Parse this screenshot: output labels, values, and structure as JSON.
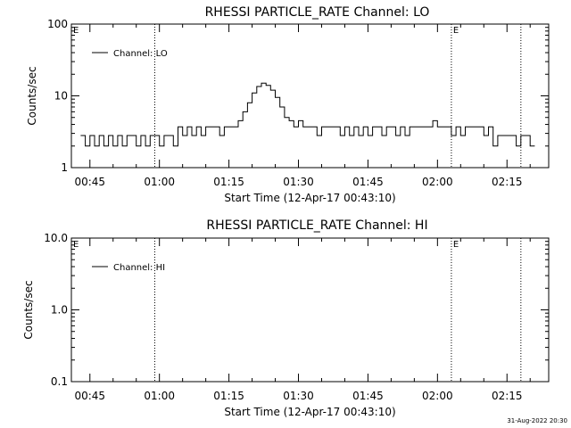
{
  "chart_data": [
    {
      "type": "line",
      "title": "RHESSI PARTICLE_RATE Channel: LO",
      "xlabel": "Start Time (12-Apr-17 00:43:10)",
      "ylabel": "Counts/sec",
      "yscale": "log",
      "ylim": [
        1,
        100
      ],
      "yticks": [
        1,
        10,
        100
      ],
      "ytick_labels": [
        "1",
        "10",
        "100"
      ],
      "xlim": [
        "00:41",
        "02:24"
      ],
      "xticks": [
        "00:45",
        "01:00",
        "01:15",
        "01:30",
        "01:45",
        "02:00",
        "02:15"
      ],
      "grid": false,
      "legend": {
        "position": "top-left",
        "entries": [
          "Channel: LO"
        ]
      },
      "markers": [
        {
          "label": "E",
          "time": "00:41"
        },
        {
          "label": "",
          "time": "00:59"
        },
        {
          "label": "E",
          "time": "02:03"
        },
        {
          "label": "",
          "time": "02:18"
        }
      ],
      "series": [
        {
          "name": "Channel: LO",
          "points": [
            [
              "00:43",
              2.8
            ],
            [
              "00:44",
              2.0
            ],
            [
              "00:45",
              2.8
            ],
            [
              "00:46",
              2.0
            ],
            [
              "00:47",
              2.8
            ],
            [
              "00:48",
              2.0
            ],
            [
              "00:49",
              2.8
            ],
            [
              "00:50",
              2.0
            ],
            [
              "00:51",
              2.8
            ],
            [
              "00:52",
              2.0
            ],
            [
              "00:53",
              2.8
            ],
            [
              "00:54",
              2.8
            ],
            [
              "00:55",
              2.0
            ],
            [
              "00:56",
              2.8
            ],
            [
              "00:57",
              2.0
            ],
            [
              "00:58",
              2.8
            ],
            [
              "00:59",
              2.8
            ],
            [
              "01:00",
              2.0
            ],
            [
              "01:01",
              2.8
            ],
            [
              "01:02",
              2.8
            ],
            [
              "01:03",
              2.0
            ],
            [
              "01:04",
              3.7
            ],
            [
              "01:05",
              2.8
            ],
            [
              "01:06",
              3.7
            ],
            [
              "01:07",
              2.8
            ],
            [
              "01:08",
              3.7
            ],
            [
              "01:09",
              2.8
            ],
            [
              "01:10",
              3.7
            ],
            [
              "01:11",
              3.7
            ],
            [
              "01:12",
              3.7
            ],
            [
              "01:13",
              2.8
            ],
            [
              "01:14",
              3.7
            ],
            [
              "01:15",
              3.7
            ],
            [
              "01:16",
              3.7
            ],
            [
              "01:17",
              4.5
            ],
            [
              "01:18",
              6.0
            ],
            [
              "01:19",
              8.0
            ],
            [
              "01:20",
              11.0
            ],
            [
              "01:21",
              13.5
            ],
            [
              "01:22",
              15.0
            ],
            [
              "01:23",
              14.0
            ],
            [
              "01:24",
              12.0
            ],
            [
              "01:25",
              9.5
            ],
            [
              "01:26",
              7.0
            ],
            [
              "01:27",
              5.0
            ],
            [
              "01:28",
              4.5
            ],
            [
              "01:29",
              3.7
            ],
            [
              "01:30",
              4.5
            ],
            [
              "01:31",
              3.7
            ],
            [
              "01:32",
              3.7
            ],
            [
              "01:33",
              3.7
            ],
            [
              "01:34",
              2.8
            ],
            [
              "01:35",
              3.7
            ],
            [
              "01:36",
              3.7
            ],
            [
              "01:37",
              3.7
            ],
            [
              "01:38",
              3.7
            ],
            [
              "01:39",
              2.8
            ],
            [
              "01:40",
              3.7
            ],
            [
              "01:41",
              2.8
            ],
            [
              "01:42",
              3.7
            ],
            [
              "01:43",
              2.8
            ],
            [
              "01:44",
              3.7
            ],
            [
              "01:45",
              2.8
            ],
            [
              "01:46",
              3.7
            ],
            [
              "01:47",
              3.7
            ],
            [
              "01:48",
              2.8
            ],
            [
              "01:49",
              3.7
            ],
            [
              "01:50",
              3.7
            ],
            [
              "01:51",
              2.8
            ],
            [
              "01:52",
              3.7
            ],
            [
              "01:53",
              2.8
            ],
            [
              "01:54",
              3.7
            ],
            [
              "01:55",
              3.7
            ],
            [
              "01:56",
              3.7
            ],
            [
              "01:57",
              3.7
            ],
            [
              "01:58",
              3.7
            ],
            [
              "01:59",
              4.5
            ],
            [
              "02:00",
              3.7
            ],
            [
              "02:01",
              3.7
            ],
            [
              "02:02",
              3.7
            ],
            [
              "02:03",
              2.8
            ],
            [
              "02:04",
              3.7
            ],
            [
              "02:05",
              2.8
            ],
            [
              "02:06",
              3.7
            ],
            [
              "02:07",
              3.7
            ],
            [
              "02:08",
              3.7
            ],
            [
              "02:09",
              3.7
            ],
            [
              "02:10",
              2.8
            ],
            [
              "02:11",
              3.7
            ],
            [
              "02:12",
              2.0
            ],
            [
              "02:13",
              2.8
            ],
            [
              "02:14",
              2.8
            ],
            [
              "02:15",
              2.8
            ],
            [
              "02:16",
              2.8
            ],
            [
              "02:17",
              2.0
            ],
            [
              "02:18",
              2.8
            ],
            [
              "02:19",
              2.8
            ],
            [
              "02:20",
              2.0
            ]
          ]
        }
      ]
    },
    {
      "type": "line",
      "title": "RHESSI PARTICLE_RATE Channel: HI",
      "xlabel": "Start Time (12-Apr-17 00:43:10)",
      "ylabel": "Counts/sec",
      "yscale": "log",
      "ylim": [
        0.1,
        10
      ],
      "yticks": [
        0.1,
        1,
        10
      ],
      "ytick_labels": [
        "0.1",
        "1.0",
        "10.0"
      ],
      "xlim": [
        "00:41",
        "02:24"
      ],
      "xticks": [
        "00:45",
        "01:00",
        "01:15",
        "01:30",
        "01:45",
        "02:00",
        "02:15"
      ],
      "grid": false,
      "legend": {
        "position": "top-left",
        "entries": [
          "Channel: HI"
        ]
      },
      "markers": [
        {
          "label": "E",
          "time": "00:41"
        },
        {
          "label": "",
          "time": "00:59"
        },
        {
          "label": "E",
          "time": "02:03"
        },
        {
          "label": "",
          "time": "02:18"
        }
      ],
      "series": [
        {
          "name": "Channel: HI",
          "points": []
        }
      ]
    }
  ],
  "footer": {
    "stamp": "31-Aug-2022 20:30"
  },
  "style": {
    "line_color": "#000000",
    "background": "#ffffff"
  }
}
